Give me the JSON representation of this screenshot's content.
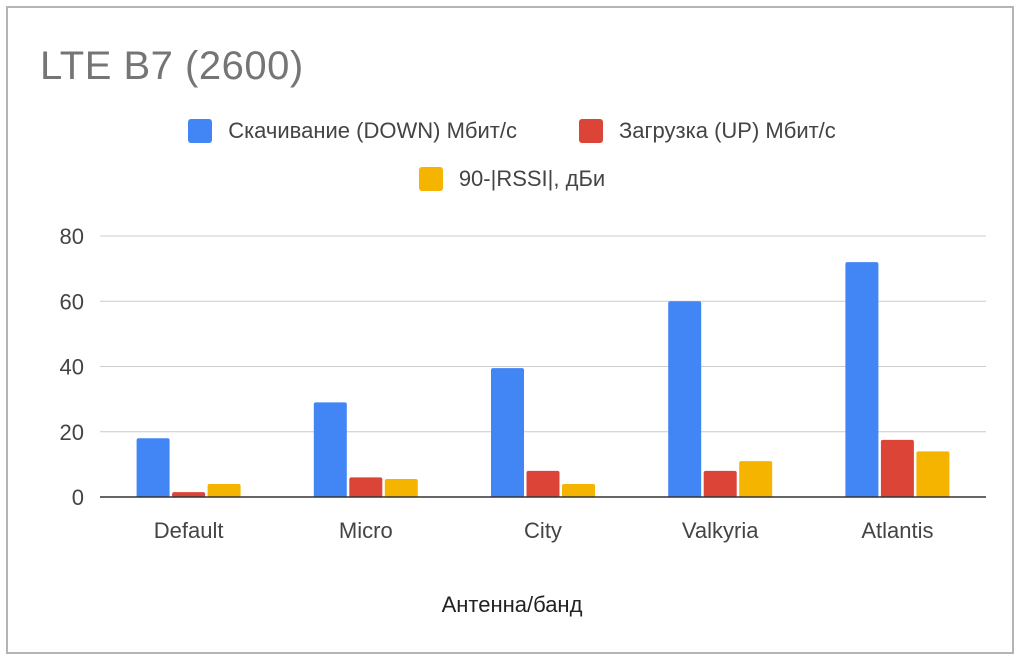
{
  "chart_data": {
    "type": "bar",
    "title": "LTE B7 (2600)",
    "xlabel": "Антенна/банд",
    "ylabel": "",
    "categories": [
      "Default",
      "Micro",
      "City",
      "Valkyria",
      "Atlantis"
    ],
    "series": [
      {
        "name": "Скачивание (DOWN) Мбит/с",
        "color": "#4285f4",
        "values": [
          18,
          29,
          39.5,
          60,
          72
        ]
      },
      {
        "name": "Загрузка (UP) Мбит/с",
        "color": "#db4437",
        "values": [
          1.5,
          6,
          8,
          8,
          17.5
        ]
      },
      {
        "name": "90-|RSSI|, дБи",
        "color": "#f4b400",
        "values": [
          4,
          5.5,
          4,
          11,
          14
        ]
      }
    ],
    "ylim": [
      0,
      80
    ],
    "yticks": [
      "0",
      "20",
      "40",
      "60",
      "80"
    ],
    "grid": true,
    "legend_position": "top"
  }
}
